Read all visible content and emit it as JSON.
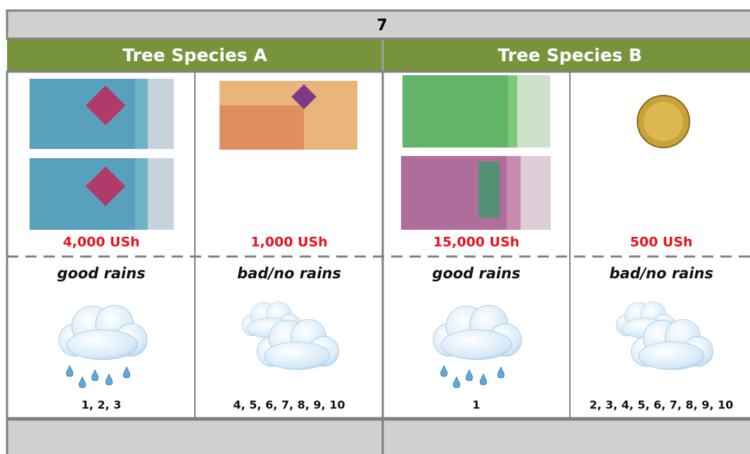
{
  "header": {
    "title": "7"
  },
  "groups": [
    {
      "name": "Tree Species A",
      "options": [
        {
          "amount": "4,000 USh",
          "rain": "good rains",
          "outcomes": "1, 2, 3"
        },
        {
          "amount": "1,000 USh",
          "rain": "bad/no rains",
          "outcomes": "4, 5, 6, 7, 8, 9, 10"
        }
      ]
    },
    {
      "name": "Tree Species B",
      "options": [
        {
          "amount": "15,000 USh",
          "rain": "good rains",
          "outcomes": "1"
        },
        {
          "amount": "500 USh",
          "rain": "bad/no rains",
          "outcomes": "2, 3, 4, 5, 6, 7, 8, 9, 10"
        }
      ]
    }
  ]
}
